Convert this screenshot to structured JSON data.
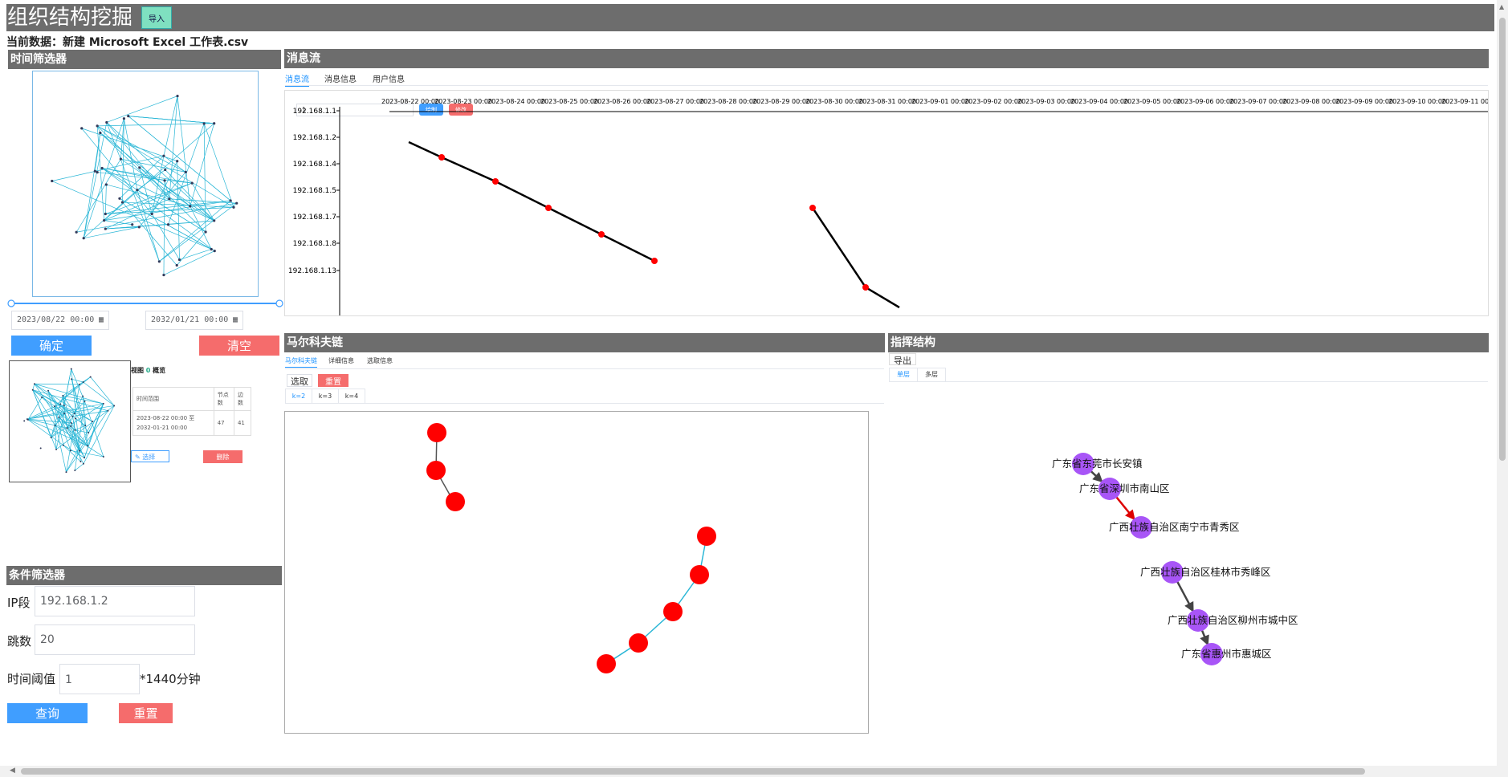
{
  "header": {
    "title": "组织结构挖掘",
    "import_label": "导入"
  },
  "dataset": {
    "prefix": "当前数据：",
    "filename": "新建 Microsoft Excel 工作表.csv"
  },
  "time_filter": {
    "title": "时间筛选器",
    "start": "2023/08/22 00:00",
    "end": "2032/01/21 00:00",
    "confirm_label": "确定",
    "clear_label": "清空",
    "view_title_prefix": "视图",
    "view_index": "0",
    "view_title_suffix": "概览",
    "table_headers": [
      "时间范围",
      "节点数",
      "边数"
    ],
    "table_row": {
      "range": "2023-08-22 00:00 至 2032-01-21 00:00",
      "nodes": "47",
      "edges": "41"
    },
    "select_label": "选择",
    "delete_label": "删除"
  },
  "condition_filter": {
    "title": "条件筛选器",
    "ip_label": "IP段",
    "ip_value": "192.168.1.2",
    "hops_label": "跳数",
    "hops_value": "20",
    "threshold_label": "时间阈值",
    "threshold_value": "1",
    "threshold_unit": "*1440分钟",
    "query_label": "查询",
    "reset_label": "重置"
  },
  "message_flow": {
    "title": "消息流",
    "tabs": [
      "消息流",
      "消息信息",
      "用户信息"
    ],
    "input_value": "1",
    "draw_label": "绘制",
    "modify_label": "修改",
    "y_labels": [
      "192.168.1.1",
      "192.168.1.2",
      "192.168.1.4",
      "192.168.1.5",
      "192.168.1.7",
      "192.168.1.8",
      "192.168.1.13"
    ],
    "x_labels": [
      "2023-08-22 00:00",
      "2023-08-23 00:00",
      "2023-08-24 00:00",
      "2023-08-25 00:00",
      "2023-08-26 00:00",
      "2023-08-27 00:00",
      "2023-08-28 00:00",
      "2023-08-29 00:00",
      "2023-08-30 00:00",
      "2023-08-31 00:00",
      "2023-09-01 00:00",
      "2023-09-02 00:00",
      "2023-09-03 00:00",
      "2023-09-04 00:00",
      "2023-09-05 00:00",
      "2023-09-06 00:00",
      "2023-09-07 00:00",
      "2023-09-08 00:00",
      "2023-09-09 00:00",
      "2023-09-10 00:00",
      "2023-09-11 00:00"
    ]
  },
  "markov": {
    "title": "马尔科夫链",
    "tabs": [
      "马尔科夫链",
      "详细信息",
      "选取信息"
    ],
    "select_label": "选取",
    "reset_label": "重置",
    "k_tabs": [
      "k=2",
      "k=3",
      "k=4"
    ]
  },
  "command": {
    "title": "指挥结构",
    "export_label": "导出",
    "tabs": [
      "单层",
      "多层"
    ],
    "nodes": [
      "广东省东莞市长安镇",
      "广东省深圳市南山区",
      "广西壮族自治区南宁市青秀区",
      "广西壮族自治区桂林市秀峰区",
      "广西壮族自治区柳州市城中区",
      "广东省惠州市惠城区"
    ]
  },
  "colors": {
    "header": "#6d6d6d",
    "primary": "#409eff",
    "danger": "#f56c6c",
    "node_red": "#ff0000",
    "node_purple": "#a855f7",
    "edge_cyan": "#29b6d6"
  }
}
